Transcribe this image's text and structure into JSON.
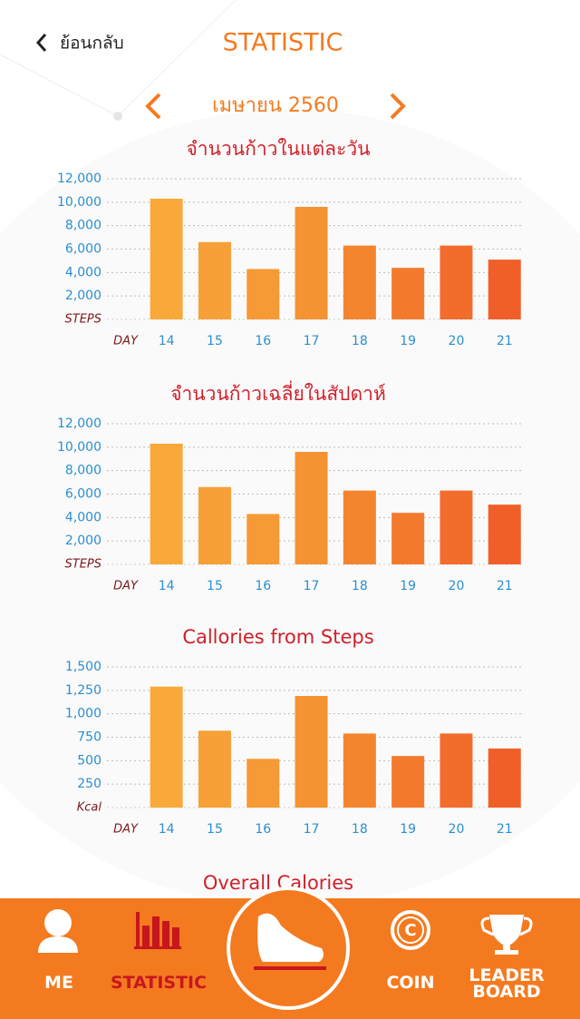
{
  "header": {
    "back": "ย้อนกลับ",
    "title": "STATISTIC"
  },
  "month": "เมษายน 2560",
  "chart_data": [
    {
      "type": "bar",
      "title": "จำนวนก้าวในแต่ละวัน",
      "x_label": "DAY",
      "y_label": "STEPS",
      "categories": [
        "14",
        "15",
        "16",
        "17",
        "18",
        "19",
        "20",
        "21"
      ],
      "values": [
        10300,
        6600,
        4300,
        9600,
        6300,
        4400,
        6300,
        5100
      ],
      "colors": [
        "#f8a93a",
        "#f7a037",
        "#f69a35",
        "#f59232",
        "#f4852f",
        "#f37a2d",
        "#f26d2b",
        "#f05f28"
      ],
      "ylim": [
        0,
        12000
      ],
      "yticks": [
        {
          "value": 2000,
          "label": "2,000"
        },
        {
          "value": 4000,
          "label": "4,000"
        },
        {
          "value": 6000,
          "label": "6,000"
        },
        {
          "value": 8000,
          "label": "8,000"
        },
        {
          "value": 10000,
          "label": "10,000"
        },
        {
          "value": 12000,
          "label": "12,000"
        }
      ],
      "grid": true
    },
    {
      "type": "bar",
      "title": "จำนวนก้าวเฉลี่ยในสัปดาห์",
      "x_label": "DAY",
      "y_label": "STEPS",
      "categories": [
        "14",
        "15",
        "16",
        "17",
        "18",
        "19",
        "20",
        "21"
      ],
      "values": [
        10300,
        6600,
        4300,
        9600,
        6300,
        4400,
        6300,
        5100
      ],
      "colors": [
        "#f8a93a",
        "#f7a037",
        "#f69a35",
        "#f59232",
        "#f4852f",
        "#f37a2d",
        "#f26d2b",
        "#f05f28"
      ],
      "ylim": [
        0,
        12000
      ],
      "yticks": [
        {
          "value": 2000,
          "label": "2,000"
        },
        {
          "value": 4000,
          "label": "4,000"
        },
        {
          "value": 6000,
          "label": "6,000"
        },
        {
          "value": 8000,
          "label": "8,000"
        },
        {
          "value": 10000,
          "label": "10,000"
        },
        {
          "value": 12000,
          "label": "12,000"
        }
      ],
      "grid": true
    },
    {
      "type": "bar",
      "title": "Callories from Steps",
      "x_label": "DAY",
      "y_label": "Kcal",
      "categories": [
        "14",
        "15",
        "16",
        "17",
        "18",
        "19",
        "20",
        "21"
      ],
      "values": [
        1290,
        820,
        520,
        1190,
        790,
        550,
        790,
        630
      ],
      "colors": [
        "#f8a93a",
        "#f7a037",
        "#f69a35",
        "#f59232",
        "#f4852f",
        "#f37a2d",
        "#f26d2b",
        "#f05f28"
      ],
      "ylim": [
        0,
        1500
      ],
      "yticks": [
        250,
        500,
        750,
        {
          "value": 1000,
          "label": "1,000"
        },
        {
          "value": 1250,
          "label": "1,250"
        },
        {
          "value": 1500,
          "label": "1,500"
        }
      ],
      "grid": true
    }
  ],
  "next_section": "Overall Calories",
  "nav": {
    "me": "ME",
    "statistic": "STATISTIC",
    "coin": "COIN",
    "leaderboard": "LEADER BOARD"
  }
}
